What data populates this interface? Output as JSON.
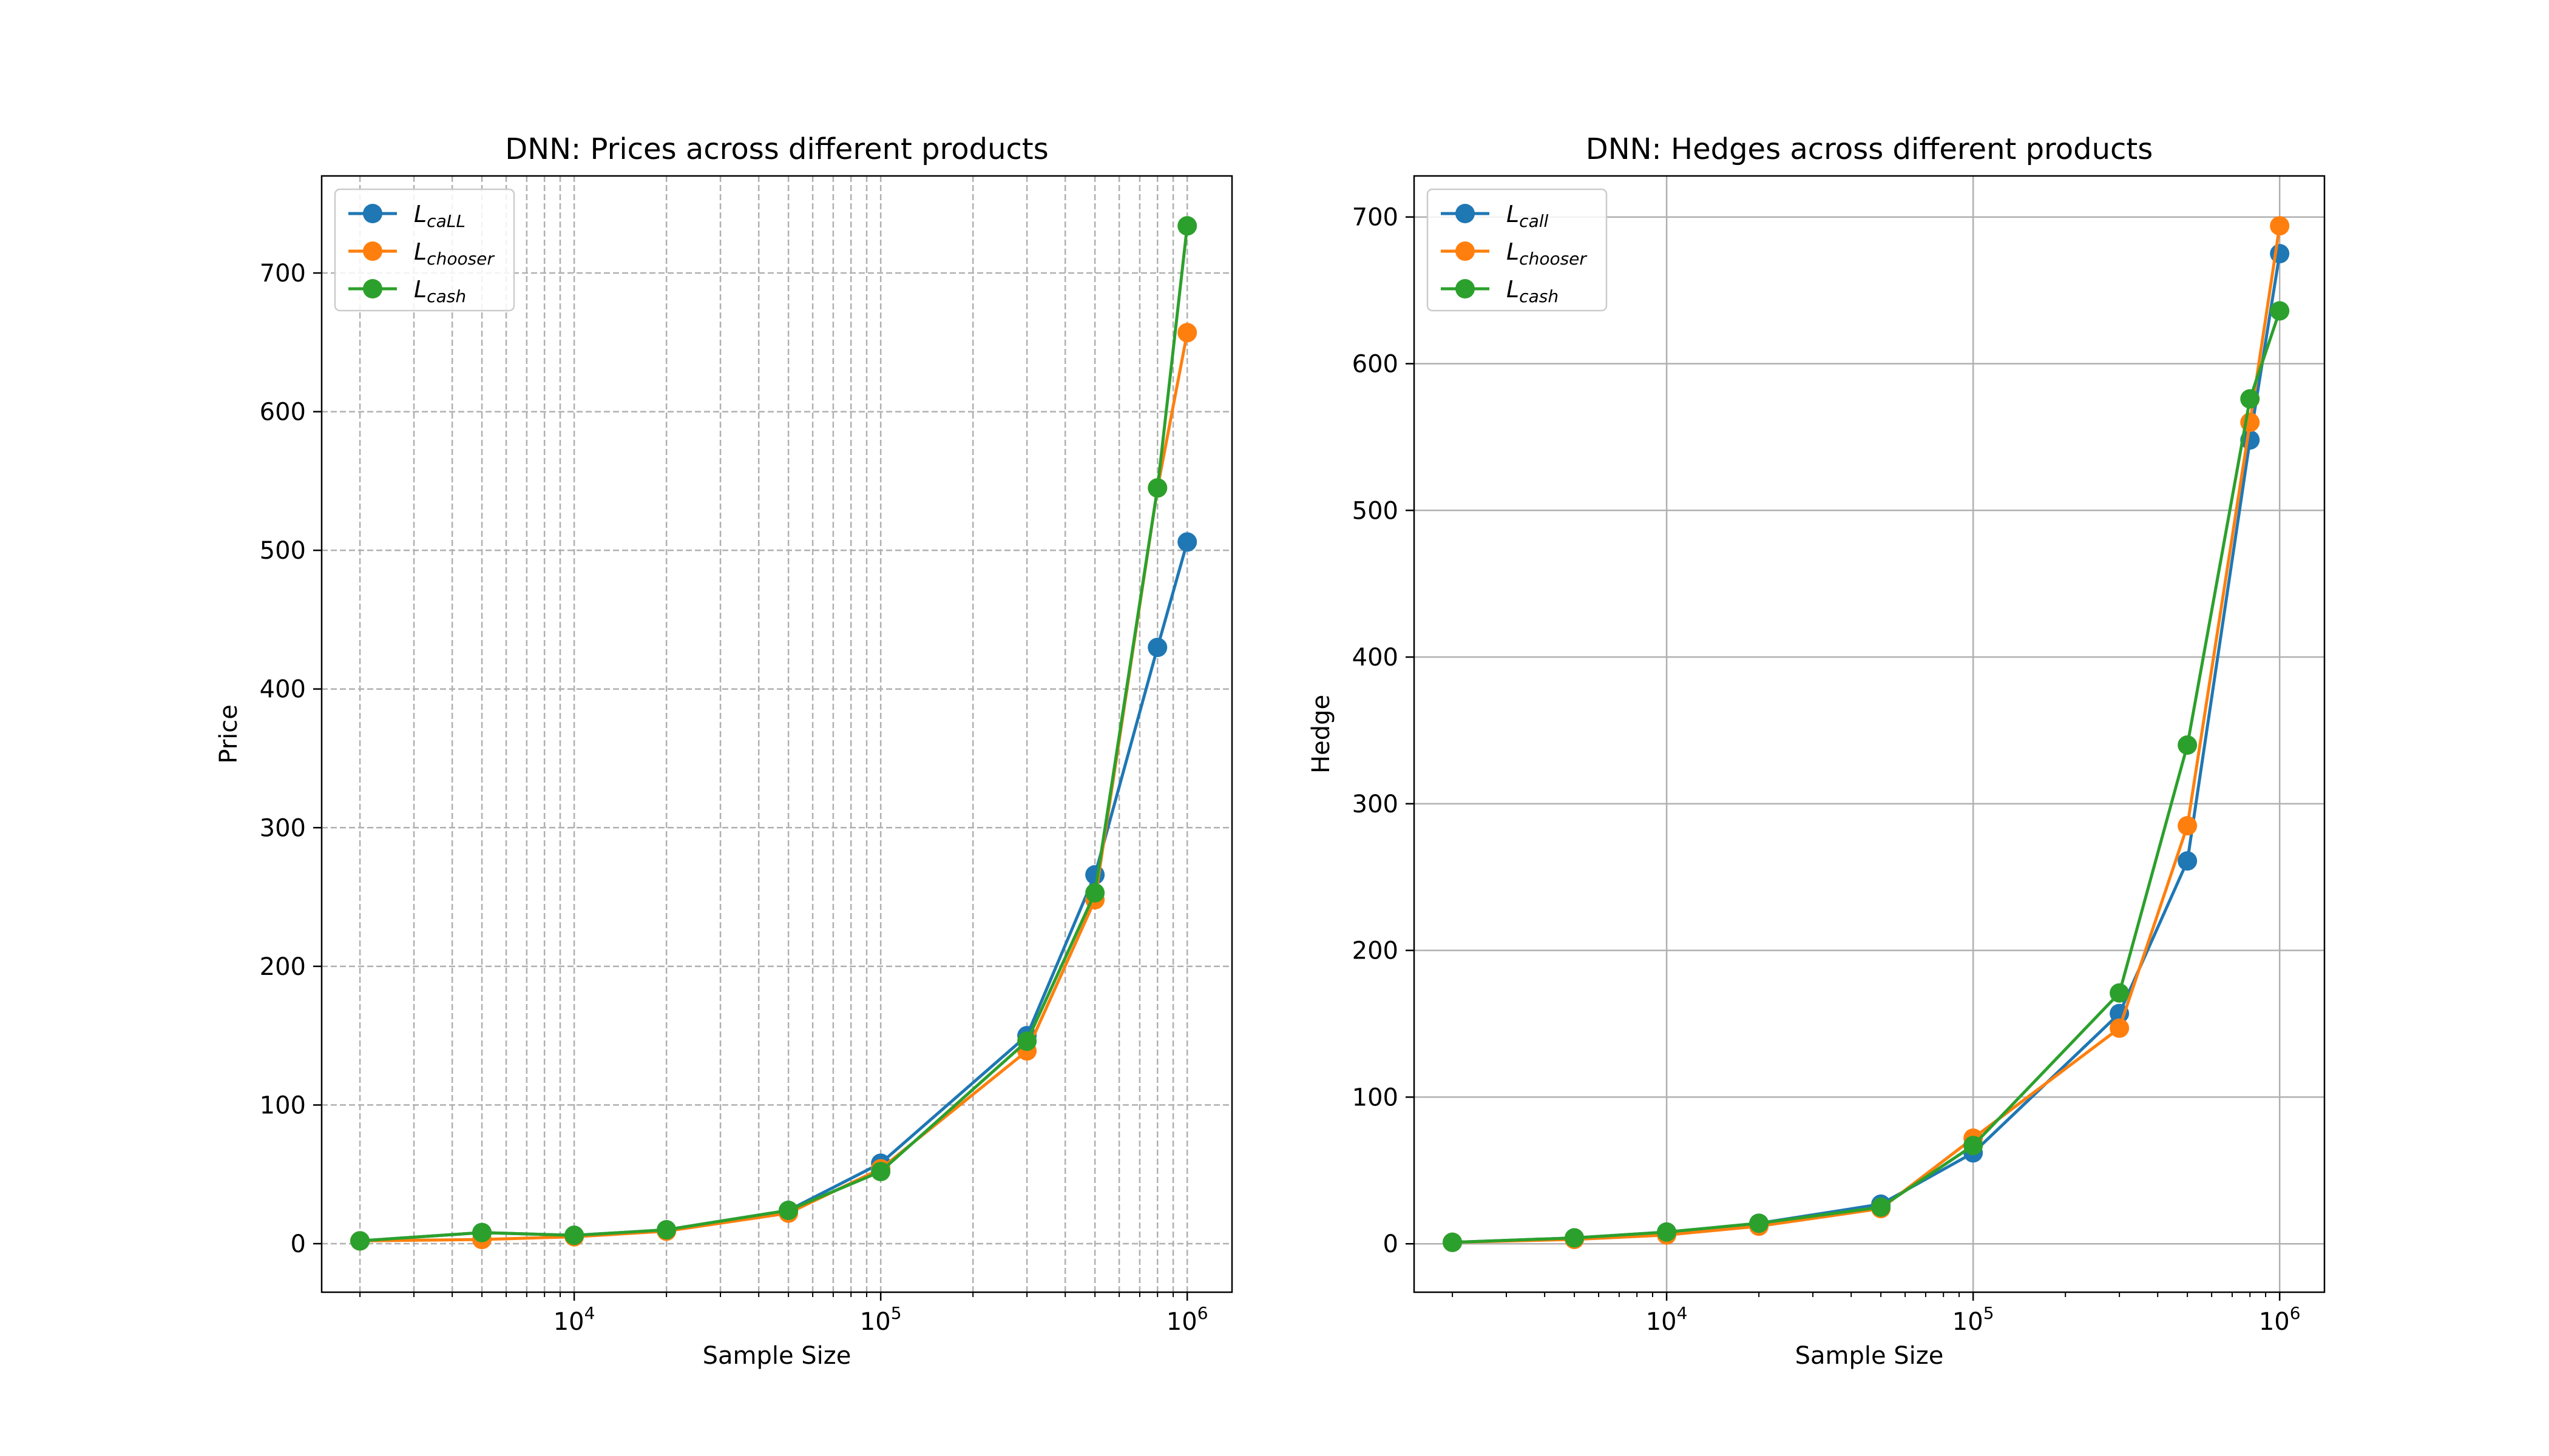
{
  "chart_data": [
    {
      "type": "line",
      "title": "DNN: Prices across different products",
      "xlabel": "Sample Size",
      "ylabel": "Price",
      "xscale": "log",
      "xlim": [
        1500,
        1400000
      ],
      "ylim": [
        -35,
        770
      ],
      "xticks": [
        10000,
        100000,
        1000000
      ],
      "xtick_labels": [
        {
          "base": "10",
          "exp": "4"
        },
        {
          "base": "10",
          "exp": "5"
        },
        {
          "base": "10",
          "exp": "6"
        }
      ],
      "yticks": [
        0,
        100,
        200,
        300,
        400,
        500,
        600,
        700
      ],
      "ytick_labels": [
        "0",
        "100",
        "200",
        "300",
        "400",
        "500",
        "600",
        "700"
      ],
      "grid": {
        "on": true,
        "style": "dashed",
        "minor": true
      },
      "legend_position": "upper-left",
      "x": [
        2000,
        5000,
        10000,
        20000,
        50000,
        100000,
        300000,
        500000,
        800000,
        1000000
      ],
      "series": [
        {
          "name": "L",
          "subscript": "caLL",
          "color": "#1f77b4",
          "values": [
            2,
            8,
            6,
            10,
            24,
            58,
            150,
            266,
            430,
            506
          ]
        },
        {
          "name": "L",
          "subscript": "chooser",
          "color": "#ff7f0e",
          "values": [
            2,
            3,
            5,
            9,
            22,
            54,
            139,
            248,
            545,
            657
          ]
        },
        {
          "name": "L",
          "subscript": "cash",
          "color": "#2ca02c",
          "values": [
            2,
            8,
            6,
            10,
            24,
            52,
            146,
            253,
            545,
            734
          ]
        }
      ]
    },
    {
      "type": "line",
      "title": "DNN: Hedges across different products",
      "xlabel": "Sample Size",
      "ylabel": "Hedge",
      "xscale": "log",
      "xlim": [
        1500,
        1400000
      ],
      "ylim": [
        -33,
        728
      ],
      "xticks": [
        10000,
        100000,
        1000000
      ],
      "xtick_labels": [
        {
          "base": "10",
          "exp": "4"
        },
        {
          "base": "10",
          "exp": "5"
        },
        {
          "base": "10",
          "exp": "6"
        }
      ],
      "yticks": [
        0,
        100,
        200,
        300,
        400,
        500,
        600,
        700
      ],
      "ytick_labels": [
        "0",
        "100",
        "200",
        "300",
        "400",
        "500",
        "600",
        "700"
      ],
      "grid": {
        "on": true,
        "style": "solid",
        "minor": false
      },
      "legend_position": "upper-left",
      "x": [
        2000,
        5000,
        10000,
        20000,
        50000,
        100000,
        300000,
        500000,
        800000,
        1000000
      ],
      "series": [
        {
          "name": "L",
          "subscript": "call",
          "color": "#1f77b4",
          "values": [
            1,
            4,
            8,
            14,
            27,
            62,
            157,
            261,
            548,
            675
          ]
        },
        {
          "name": "L",
          "subscript": "chooser",
          "color": "#ff7f0e",
          "values": [
            1,
            3,
            6,
            12,
            24,
            72,
            147,
            285,
            560,
            694
          ]
        },
        {
          "name": "L",
          "subscript": "cash",
          "color": "#2ca02c",
          "values": [
            1,
            4,
            8,
            14,
            25,
            67,
            171,
            340,
            576,
            636
          ]
        }
      ]
    }
  ]
}
